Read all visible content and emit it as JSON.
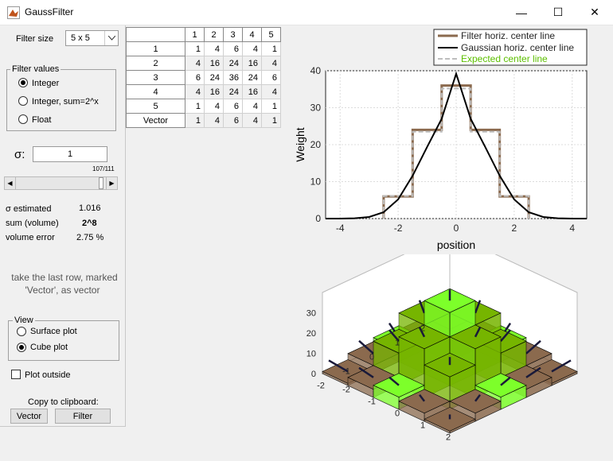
{
  "window": {
    "title": "GaussFilter",
    "minimize": "—",
    "maximize": "☐",
    "close": "✕"
  },
  "left": {
    "filter_size_label": "Filter size",
    "filter_size_value": "5 x 5",
    "filter_values_title": "Filter values",
    "radios": [
      "Integer",
      "Integer, sum=2^x",
      "Float"
    ],
    "selected_radio": 0,
    "sigma_label": "σ:",
    "sigma_value": "1",
    "slider_readout": "107/111",
    "slider_fraction": 0.964,
    "stats": [
      {
        "label": "σ estimated",
        "value": "1.016"
      },
      {
        "label": "sum (volume)",
        "value": "2^8"
      },
      {
        "label": "volume error",
        "value": "2.75 %"
      }
    ],
    "hint_line1": "take the last row, marked",
    "hint_line2": "'Vector', as vector",
    "view_title": "View",
    "view_options": [
      "Surface plot",
      "Cube plot"
    ],
    "view_selected": 1,
    "plot_outside_label": "Plot outside",
    "copy_label": "Copy to clipboard:",
    "vector_button": "Vector",
    "filter_button": "Filter"
  },
  "table": {
    "columns": [
      "1",
      "2",
      "3",
      "4",
      "5"
    ],
    "rows": [
      {
        "header": "1",
        "cells": [
          "1",
          "4",
          "6",
          "4",
          "1"
        ]
      },
      {
        "header": "2",
        "cells": [
          "4",
          "16",
          "24",
          "16",
          "4"
        ]
      },
      {
        "header": "3",
        "cells": [
          "6",
          "24",
          "36",
          "24",
          "6"
        ]
      },
      {
        "header": "4",
        "cells": [
          "4",
          "16",
          "24",
          "16",
          "4"
        ]
      },
      {
        "header": "5",
        "cells": [
          "1",
          "4",
          "6",
          "4",
          "1"
        ]
      },
      {
        "header": "Vector",
        "cells": [
          "1",
          "4",
          "6",
          "4",
          "1"
        ]
      }
    ]
  },
  "chart_data": [
    {
      "type": "line",
      "xlabel": "position",
      "ylabel": "Weight",
      "xlim": [
        -4.5,
        4.5
      ],
      "ylim": [
        0,
        40
      ],
      "xticks": [
        "-4",
        "-2",
        "0",
        "2",
        "4"
      ],
      "yticks": [
        "0",
        "10",
        "20",
        "30",
        "40"
      ],
      "grid": true,
      "legend_position": "top-right",
      "series": [
        {
          "name": "Filter horiz. center line",
          "color": "#8b6a4e",
          "x": [
            -2.5,
            -2.5,
            -1.5,
            -1.5,
            -0.5,
            -0.5,
            0.5,
            0.5,
            1.5,
            1.5,
            2.5,
            2.5
          ],
          "y": [
            0,
            6,
            6,
            24,
            24,
            36,
            36,
            24,
            24,
            6,
            6,
            0
          ]
        },
        {
          "name": "Gaussian  horiz. center line",
          "color": "#000000",
          "x": [
            -4.5,
            -4,
            -3.5,
            -3,
            -2.5,
            -2,
            -1.5,
            -1,
            -0.5,
            0,
            0.5,
            1,
            1.5,
            2,
            2.5,
            3,
            3.5,
            4,
            4.5
          ],
          "y": [
            0.0,
            0.01,
            0.08,
            0.43,
            1.72,
            5.19,
            11.6,
            19.4,
            27.0,
            39.2,
            27.0,
            19.4,
            11.6,
            5.19,
            1.72,
            0.43,
            0.08,
            0.01,
            0.0
          ]
        },
        {
          "name": "Expected center line",
          "color": "#bdbdbd",
          "x": [
            -2.5,
            -2.5,
            -1.5,
            -1.5,
            -0.5,
            -0.5,
            0.5,
            0.5,
            1.5,
            1.5,
            2.5,
            2.5
          ],
          "y": [
            0,
            6.1,
            6.1,
            23.5,
            23.5,
            35.2,
            35.2,
            23.5,
            23.5,
            6.1,
            6.1,
            0
          ]
        }
      ]
    },
    {
      "type": "bar3d",
      "zticks": [
        "0",
        "10",
        "20",
        "30"
      ],
      "xticks": [
        "-2",
        "-1",
        "0",
        "1",
        "2"
      ],
      "yticks": [
        "2",
        "1",
        "0",
        "-1",
        "-2"
      ],
      "grid_values": [
        [
          1,
          4,
          6,
          4,
          1
        ],
        [
          4,
          16,
          24,
          16,
          4
        ],
        [
          6,
          24,
          36,
          24,
          6
        ],
        [
          4,
          16,
          24,
          16,
          4
        ],
        [
          1,
          4,
          6,
          4,
          1
        ]
      ],
      "colors": {
        "top_mid": "#76b500",
        "top_high": "#7dff2a",
        "low": "#8b6a4e",
        "side": "#3f7a00"
      }
    }
  ]
}
